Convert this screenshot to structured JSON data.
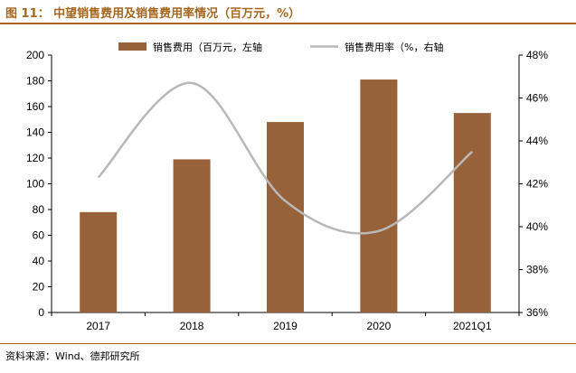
{
  "figure": {
    "title": "图 11： 中望销售费用及销售费用率情况（百万元，%）",
    "source": "资料来源：Wind、德邦研究所"
  },
  "colors": {
    "accent": "#a5671f",
    "bar": "#97613a",
    "line": "#b8b8b8",
    "axis": "#000000"
  },
  "chart_data": {
    "type": "bar",
    "categories": [
      "2017",
      "2018",
      "2019",
      "2020",
      "2021Q1"
    ],
    "series": [
      {
        "name": "销售费用（百万元，左轴",
        "type": "bar",
        "axis": "left",
        "values": [
          78,
          119,
          148,
          181,
          155
        ]
      },
      {
        "name": "销售费用率（%，右轴",
        "type": "line",
        "axis": "right",
        "values": [
          42.3,
          46.7,
          41.2,
          39.8,
          43.5
        ]
      }
    ],
    "y_left": {
      "min": 0,
      "max": 200,
      "step": 20,
      "ticks": [
        "0",
        "20",
        "40",
        "60",
        "80",
        "100",
        "120",
        "140",
        "160",
        "180",
        "200"
      ]
    },
    "y_right": {
      "min": 36,
      "max": 48,
      "step": 2,
      "ticks": [
        "36%",
        "38%",
        "40%",
        "42%",
        "44%",
        "46%",
        "48%"
      ]
    },
    "legend": "top-center",
    "grid": false
  }
}
